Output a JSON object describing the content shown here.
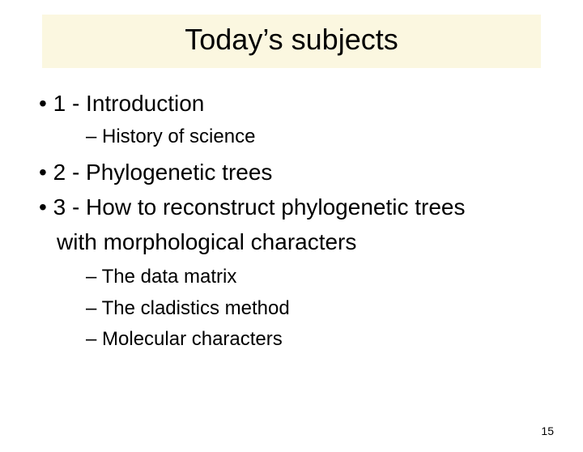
{
  "slide": {
    "title": "Today’s subjects",
    "page_number": "15",
    "title_background": "#fbf7e0",
    "background": "#ffffff",
    "text_color": "#000000",
    "title_fontsize": 36,
    "l1_fontsize": 28,
    "l2_fontsize": 24,
    "pagenum_fontsize": 14
  },
  "outline": {
    "item1": "1 - Introduction",
    "item1_sub1": "History of science",
    "item2": "2 - Phylogenetic trees",
    "item3_line1": "3 - How to reconstruct phylogenetic trees",
    "item3_line2": "with morphological characters",
    "item3_sub1": "The data matrix",
    "item3_sub2": "The cladistics method",
    "item3_sub3": "Molecular characters"
  }
}
